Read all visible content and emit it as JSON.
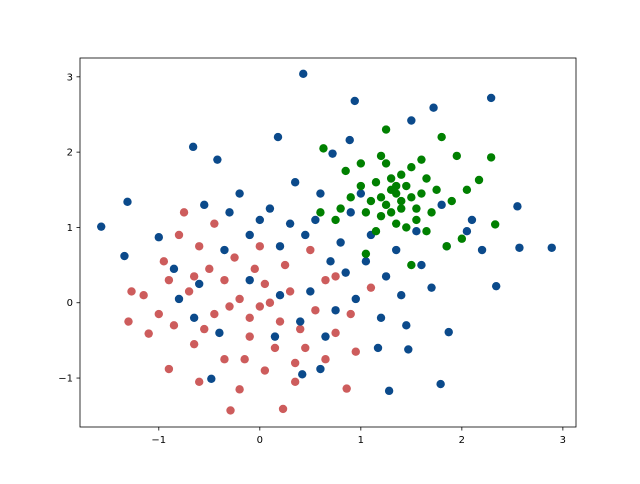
{
  "chart_data": {
    "type": "scatter",
    "title": "",
    "xlabel": "",
    "ylabel": "",
    "xlim": [
      -1.78,
      3.13
    ],
    "ylim": [
      -1.65,
      3.25
    ],
    "grid": false,
    "legend": "none",
    "xticks": [
      "−1",
      "0",
      "1",
      "2",
      "3"
    ],
    "xtick_values": [
      -1,
      0,
      1,
      2,
      3
    ],
    "yticks": [
      "−1",
      "0",
      "1",
      "2",
      "3"
    ],
    "ytick_values": [
      -1,
      0,
      1,
      2,
      3
    ],
    "series": [
      {
        "color": "#cd5c5c",
        "points": [
          [
            -0.29,
            -1.43
          ],
          [
            0.23,
            -1.41
          ],
          [
            0.86,
            -1.14
          ],
          [
            -1.27,
            0.15
          ],
          [
            -1.1,
            -0.41
          ],
          [
            -1.3,
            -0.25
          ],
          [
            -0.9,
            -0.88
          ],
          [
            -0.6,
            -1.05
          ],
          [
            -0.2,
            -1.15
          ],
          [
            0.05,
            -0.9
          ],
          [
            0.35,
            -1.05
          ],
          [
            0.65,
            -0.75
          ],
          [
            0.95,
            -0.65
          ],
          [
            0.9,
            -0.15
          ],
          [
            1.1,
            0.2
          ],
          [
            0.75,
            0.35
          ],
          [
            -0.75,
            1.2
          ],
          [
            -0.45,
            1.05
          ],
          [
            -0.95,
            0.55
          ],
          [
            -1.15,
            0.1
          ],
          [
            -0.85,
            -0.3
          ],
          [
            -0.65,
            -0.55
          ],
          [
            -0.35,
            -0.75
          ],
          [
            -0.1,
            -0.45
          ],
          [
            0.15,
            -0.6
          ],
          [
            0.4,
            -0.35
          ],
          [
            0.55,
            -0.1
          ],
          [
            0.3,
            0.15
          ],
          [
            0.05,
            0.25
          ],
          [
            -0.2,
            0.05
          ],
          [
            -0.45,
            -0.15
          ],
          [
            -0.7,
            0.15
          ],
          [
            -0.5,
            0.45
          ],
          [
            -0.25,
            0.6
          ],
          [
            0.0,
            0.75
          ],
          [
            0.25,
            0.5
          ],
          [
            0.5,
            0.7
          ],
          [
            -0.1,
            -0.2
          ],
          [
            0.1,
            0.0
          ],
          [
            -0.35,
            0.3
          ],
          [
            -0.6,
            0.75
          ],
          [
            -0.8,
            0.9
          ],
          [
            -1.0,
            -0.15
          ],
          [
            0.2,
            -0.25
          ],
          [
            0.45,
            -0.6
          ],
          [
            -0.15,
            -0.75
          ],
          [
            0.65,
            0.3
          ],
          [
            -0.55,
            -0.35
          ],
          [
            -0.3,
            -0.05
          ],
          [
            0.0,
            -0.05
          ],
          [
            -0.65,
            0.35
          ],
          [
            0.35,
            -0.8
          ],
          [
            -0.05,
            0.45
          ],
          [
            -0.9,
            0.3
          ],
          [
            0.75,
            -0.4
          ]
        ]
      },
      {
        "color": "#0b4a8b",
        "points": [
          [
            -1.57,
            1.01
          ],
          [
            0.43,
            3.04
          ],
          [
            2.29,
            2.72
          ],
          [
            2.89,
            0.73
          ],
          [
            2.57,
            0.73
          ],
          [
            1.79,
            -1.08
          ],
          [
            1.28,
            -1.17
          ],
          [
            -1.31,
            1.34
          ],
          [
            -0.48,
            -1.01
          ],
          [
            1.72,
            2.59
          ],
          [
            0.94,
            2.68
          ],
          [
            2.34,
            0.22
          ],
          [
            2.55,
            1.28
          ],
          [
            1.87,
            -0.39
          ],
          [
            1.47,
            -0.62
          ],
          [
            1.17,
            -0.6
          ],
          [
            0.42,
            -0.95
          ],
          [
            0.6,
            -0.88
          ],
          [
            -0.66,
            2.07
          ],
          [
            -0.42,
            1.9
          ],
          [
            0.18,
            2.2
          ],
          [
            0.72,
            1.98
          ],
          [
            0.89,
            2.16
          ],
          [
            1.5,
            2.42
          ],
          [
            -1.34,
            0.62
          ],
          [
            -1.0,
            0.87
          ],
          [
            -0.85,
            0.45
          ],
          [
            -0.55,
            1.3
          ],
          [
            -0.2,
            1.45
          ],
          [
            0.1,
            1.25
          ],
          [
            0.35,
            1.6
          ],
          [
            0.6,
            1.45
          ],
          [
            0.9,
            1.2
          ],
          [
            1.1,
            0.9
          ],
          [
            1.35,
            0.7
          ],
          [
            1.6,
            0.5
          ],
          [
            1.85,
            0.75
          ],
          [
            2.05,
            0.95
          ],
          [
            2.2,
            0.7
          ],
          [
            1.7,
            0.2
          ],
          [
            1.4,
            0.1
          ],
          [
            1.2,
            -0.2
          ],
          [
            0.95,
            0.05
          ],
          [
            0.7,
            0.55
          ],
          [
            0.45,
            0.9
          ],
          [
            0.2,
            0.75
          ],
          [
            -0.1,
            0.9
          ],
          [
            -0.35,
            0.7
          ],
          [
            -0.6,
            0.25
          ],
          [
            -0.8,
            0.05
          ],
          [
            -0.4,
            -0.4
          ],
          [
            -0.1,
            0.3
          ],
          [
            0.2,
            0.1
          ],
          [
            0.4,
            -0.25
          ],
          [
            0.65,
            -0.45
          ],
          [
            0.85,
            0.4
          ],
          [
            1.05,
            0.55
          ],
          [
            1.25,
            0.35
          ],
          [
            1.55,
            0.95
          ],
          [
            1.8,
            1.3
          ],
          [
            2.1,
            1.1
          ],
          [
            0.55,
            1.1
          ],
          [
            0.3,
            1.05
          ],
          [
            0.0,
            1.1
          ],
          [
            -0.3,
            1.2
          ],
          [
            0.8,
            0.8
          ],
          [
            1.0,
            1.45
          ],
          [
            0.15,
            -0.45
          ],
          [
            -0.65,
            -0.2
          ],
          [
            1.45,
            -0.3
          ],
          [
            0.5,
            0.15
          ],
          [
            0.75,
            -0.1
          ]
        ]
      },
      {
        "color": "#008000",
        "points": [
          [
            2.29,
            1.93
          ],
          [
            2.33,
            1.04
          ],
          [
            2.17,
            1.63
          ],
          [
            0.63,
            2.05
          ],
          [
            1.25,
            2.3
          ],
          [
            1.8,
            2.2
          ],
          [
            1.95,
            1.95
          ],
          [
            2.0,
            0.85
          ],
          [
            1.85,
            0.75
          ],
          [
            0.6,
            1.2
          ],
          [
            0.75,
            1.1
          ],
          [
            1.05,
            0.65
          ],
          [
            1.5,
            0.5
          ],
          [
            1.2,
            1.4
          ],
          [
            1.3,
            1.5
          ],
          [
            1.4,
            1.35
          ],
          [
            1.35,
            1.45
          ],
          [
            1.25,
            1.3
          ],
          [
            1.45,
            1.55
          ],
          [
            1.15,
            1.6
          ],
          [
            1.55,
            1.25
          ],
          [
            1.3,
            1.2
          ],
          [
            1.4,
            1.7
          ],
          [
            1.2,
            1.15
          ],
          [
            1.6,
            1.45
          ],
          [
            1.1,
            1.35
          ],
          [
            1.5,
            1.8
          ],
          [
            1.35,
            1.05
          ],
          [
            1.65,
            1.65
          ],
          [
            1.0,
            1.55
          ],
          [
            1.7,
            1.2
          ],
          [
            1.25,
            1.85
          ],
          [
            1.45,
            1.0
          ],
          [
            1.05,
            1.2
          ],
          [
            1.6,
            1.9
          ],
          [
            0.9,
            1.4
          ],
          [
            1.75,
            1.5
          ],
          [
            1.3,
            1.65
          ],
          [
            1.15,
            0.95
          ],
          [
            1.55,
            1.1
          ],
          [
            0.85,
            1.75
          ],
          [
            1.9,
            1.35
          ],
          [
            1.2,
            1.95
          ],
          [
            1.4,
            1.25
          ],
          [
            1.0,
            1.85
          ],
          [
            1.65,
            0.95
          ],
          [
            2.05,
            1.5
          ],
          [
            0.8,
            1.25
          ],
          [
            1.35,
            1.55
          ],
          [
            1.5,
            1.4
          ]
        ]
      }
    ]
  }
}
